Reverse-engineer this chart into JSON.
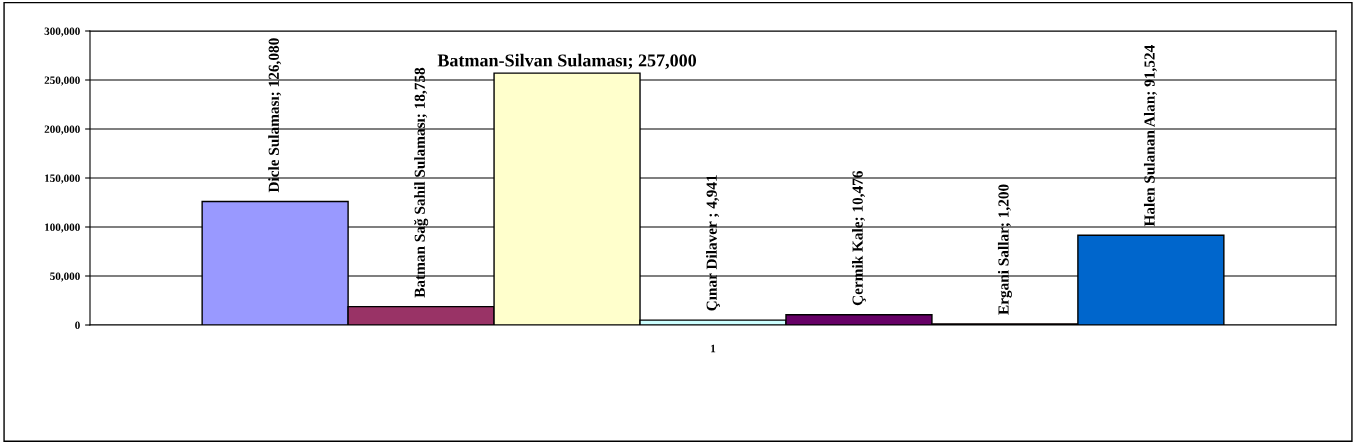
{
  "chart_data": {
    "type": "bar",
    "categories": [
      "1"
    ],
    "series": [
      {
        "color": "#9999ff",
        "values": [
          126080
        ],
        "value_labels": [
          "Dicle Sulaması; 126,080"
        ]
      },
      {
        "color": "#993366",
        "values": [
          18758
        ],
        "value_labels": [
          "Batman Sağ Sahil Sulaması; 18,758"
        ]
      },
      {
        "color": "#ffffcc",
        "values": [
          257000
        ],
        "value_labels": [
          "Batman-Silvan Sulaması; 257,000"
        ]
      },
      {
        "color": "#ccffff",
        "values": [
          4941
        ],
        "value_labels": [
          "Çınar Dilaver ; 4,941"
        ]
      },
      {
        "color": "#660066",
        "values": [
          10476
        ],
        "value_labels": [
          "Çermik Kale; 10,476"
        ]
      },
      {
        "color": "#ff8080",
        "values": [
          1200
        ],
        "value_labels": [
          "Ergani Sallar; 1,200"
        ]
      },
      {
        "color": "#0066cc",
        "values": [
          91524
        ],
        "value_labels": [
          "Halen Sulanan Alan; 91,524"
        ]
      }
    ],
    "ylim": [
      0,
      300000
    ],
    "yticks": [
      {
        "value": 0,
        "label": "0"
      },
      {
        "value": 50000,
        "label": "50,000"
      },
      {
        "value": 100000,
        "label": "100,000"
      },
      {
        "value": 150000,
        "label": "150,000"
      },
      {
        "value": 200000,
        "label": "200,000"
      },
      {
        "value": 250000,
        "label": "250,000"
      },
      {
        "value": 300000,
        "label": "300,000"
      }
    ],
    "grid": "y",
    "legend": false
  }
}
